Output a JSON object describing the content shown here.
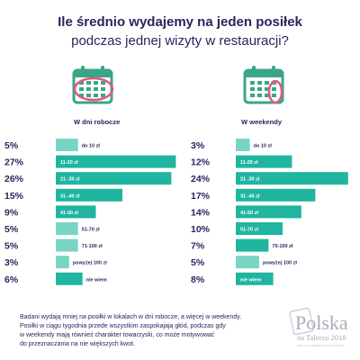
{
  "header": {
    "title_line1": "Ile średnio wydajemy na jeden posiłek",
    "title_line2": "podczas jednej wizyty w restauracji?"
  },
  "panels": {
    "weekday_label": "W dni robocze",
    "weekend_label": "W weekendy"
  },
  "colors": {
    "bar": "#1fb5a0",
    "bar_light": "#79d4c4",
    "text_dark": "#26265e",
    "calendar_green": "#3ba588",
    "calendar_circle": "#e05a7a"
  },
  "icons": [
    "calendar-weekday-icon",
    "calendar-weekend-icon"
  ],
  "chart_data": [
    {
      "type": "bar",
      "title": "W dni robocze",
      "categories": [
        "do 10 zł",
        "11-20 zł",
        "21 -30 zł",
        "31 -40 zł",
        "41-50 zł",
        "51-70 zł",
        "71-100 zł",
        "powyżej 100 zł",
        "nie wiem"
      ],
      "value_labels": [
        "5%",
        "27%",
        "26%",
        "15%",
        "9%",
        "5%",
        "5%",
        "3%",
        "6%"
      ],
      "values": [
        5,
        27,
        26,
        15,
        9,
        5,
        5,
        3,
        6
      ]
    },
    {
      "type": "bar",
      "title": "W weekendy",
      "categories": [
        "do 10 zł",
        "11-20 zł",
        "21 -30 zł",
        "31 -40 zł",
        "41-50 zł",
        "51-70 zł",
        "70-100 zł",
        "powyżej 100 zł",
        "nie wiem"
      ],
      "value_labels": [
        "3%",
        "12%",
        "24%",
        "17%",
        "14%",
        "10%",
        "7%",
        "5%",
        "8%"
      ],
      "values": [
        3,
        12,
        24,
        17,
        14,
        10,
        7,
        5,
        8
      ]
    }
  ],
  "footer": {
    "line1": "Badani wydają mniej na posiłki w lokalach w dni robocze, a więcej w weekendy.",
    "line2": "Posiłki w ciągu tygodnia przede wszystkim zaspokajają głód, podczas gdy",
    "line3": "w weekendy mają również charakter towarzyski, co może motywować",
    "line4": "do przeznaczania na nie większych kwot."
  },
  "logo": {
    "brand": "Polska",
    "subtitle": "na Talerzu 2018",
    "tagline": "Raport Firmy MAKRO Cash&Carry Polska"
  }
}
